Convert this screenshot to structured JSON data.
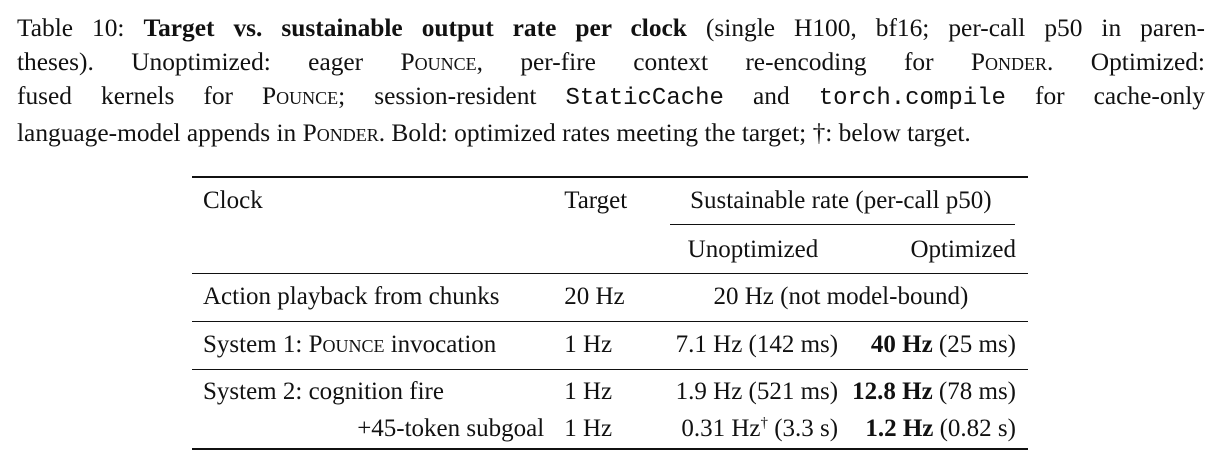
{
  "caption": {
    "label": "Table 10:",
    "bold_title": "Target vs. sustainable output rate per clock",
    "l1_rest": "(single H100, bf16; per-call p50 in paren-",
    "l2_a": "theses).  Unoptimized: eager",
    "pounce": "Pounce",
    "l2_b": ", per-fire context re-encoding for",
    "ponder": "Ponder",
    "l2_c": ".  Optimized:",
    "l3_a": "fused kernels for",
    "l3_b": "; session-resident",
    "static_cache": "StaticCache",
    "l3_c": "and",
    "torch_compile": "torch.compile",
    "l3_d": "for cache-only",
    "l4_a": "language-model appends in",
    "l4_b": ". Bold: optimized rates meeting the target; †: below target."
  },
  "table": {
    "headers": {
      "clock": "Clock",
      "target": "Target",
      "sustainable": "Sustainable rate (per-call p50)",
      "unoptimized": "Unoptimized",
      "optimized": "Optimized"
    },
    "rows": {
      "action": {
        "clock": "Action playback from chunks",
        "target": "20 Hz",
        "merged": "20 Hz (not model-bound)"
      },
      "system1": {
        "clock_a": "System 1:",
        "clock_sc": "Pounce",
        "clock_b": "invocation",
        "target": "1 Hz",
        "unopt": "7.1 Hz (142 ms)",
        "opt_bold": "40 Hz",
        "opt_rest": "(25 ms)"
      },
      "system2": {
        "clock": "System 2: cognition fire",
        "target": "1 Hz",
        "unopt": "1.9 Hz (521 ms)",
        "opt_bold": "12.8 Hz",
        "opt_rest": "(78 ms)"
      },
      "subgoal": {
        "clock": "+45-token subgoal",
        "target": "1 Hz",
        "unopt_a": "0.31 Hz",
        "unopt_dagger": "†",
        "unopt_b": "(3.3 s)",
        "opt_bold": "1.2 Hz",
        "opt_rest": "(0.82 s)"
      }
    }
  }
}
